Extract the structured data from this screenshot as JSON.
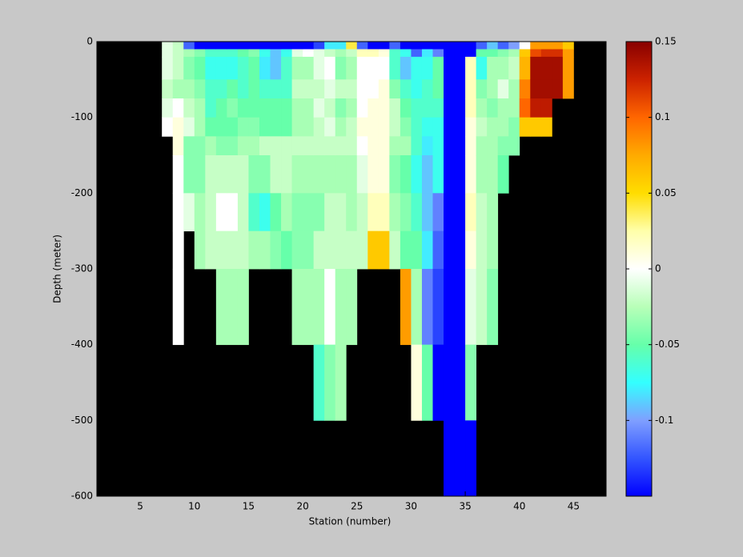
{
  "chart_data": {
    "type": "heatmap",
    "xlabel": "Station (number)",
    "ylabel": "Depth (meter)",
    "xlim": [
      1,
      48
    ],
    "ylim": [
      -600,
      0
    ],
    "xticks": [
      5,
      10,
      15,
      20,
      25,
      30,
      35,
      40,
      45
    ],
    "yticks": [
      0,
      -100,
      -200,
      -300,
      -400,
      -500,
      -600
    ],
    "clim": [
      -0.15,
      0.15
    ],
    "cticks": [
      -0.1,
      -0.05,
      0,
      0.05,
      0.1,
      0.15
    ],
    "background": "#000000",
    "colormap": [
      "#0000ff",
      "#3355ff",
      "#7f9fff",
      "#33ffff",
      "#66ffaa",
      "#b8ffb8",
      "#ffffff",
      "#ffffaa",
      "#ffdd00",
      "#ffaa00",
      "#ff6600",
      "#cc2200",
      "#880000"
    ],
    "x": [
      7,
      8,
      9,
      10,
      11,
      12,
      13,
      14,
      15,
      16,
      17,
      18,
      19,
      20,
      21,
      22,
      23,
      24,
      25,
      26,
      27,
      28,
      29,
      30,
      31,
      32,
      33,
      34,
      35,
      36,
      37,
      38,
      39,
      40,
      41,
      42,
      43,
      44,
      45
    ],
    "y": [
      0,
      -10,
      -20,
      -50,
      -75,
      -100,
      -125,
      -150,
      -200,
      -250,
      -300,
      -400,
      -500,
      -600
    ],
    "z": [
      [
        -0.01,
        -0.01,
        -0.01,
        -0.02,
        -0.01,
        0,
        null,
        null,
        null,
        null,
        null,
        null,
        null
      ],
      [
        -0.02,
        -0.02,
        -0.02,
        -0.03,
        0,
        0.01,
        0.01,
        0,
        0,
        0,
        0,
        null,
        null
      ],
      [
        -0.12,
        -0.03,
        -0.04,
        -0.03,
        -0.02,
        -0.01,
        -0.04,
        -0.04,
        -0.01,
        null,
        null,
        null,
        null
      ],
      [
        -0.15,
        -0.04,
        -0.05,
        -0.04,
        -0.03,
        -0.03,
        -0.04,
        -0.04,
        -0.03,
        -0.03,
        null,
        null,
        null
      ],
      [
        -0.15,
        -0.06,
        -0.07,
        -0.06,
        -0.06,
        -0.05,
        -0.03,
        -0.02,
        -0.02,
        -0.02,
        null,
        null,
        null
      ],
      [
        -0.15,
        -0.06,
        -0.07,
        -0.06,
        -0.05,
        -0.05,
        -0.04,
        -0.02,
        0,
        -0.02,
        -0.03,
        null,
        null
      ],
      [
        -0.15,
        -0.06,
        -0.07,
        -0.05,
        -0.04,
        -0.05,
        -0.04,
        -0.02,
        0,
        -0.02,
        -0.03,
        null,
        null
      ],
      [
        -0.15,
        -0.05,
        -0.06,
        -0.06,
        -0.05,
        -0.04,
        -0.03,
        -0.02,
        -0.02,
        -0.02,
        -0.03,
        null,
        null
      ],
      [
        -0.15,
        -0.04,
        -0.05,
        -0.05,
        -0.05,
        -0.04,
        -0.03,
        -0.04,
        -0.06,
        -0.03,
        null,
        null,
        null
      ],
      [
        -0.15,
        -0.07,
        -0.08,
        -0.06,
        -0.05,
        -0.05,
        -0.02,
        -0.04,
        -0.07,
        -0.03,
        null,
        null,
        null
      ],
      [
        -0.15,
        -0.09,
        -0.09,
        -0.06,
        -0.05,
        -0.05,
        -0.02,
        -0.02,
        -0.05,
        -0.04,
        null,
        null,
        null
      ],
      [
        -0.15,
        -0.07,
        -0.06,
        -0.06,
        -0.05,
        -0.05,
        -0.02,
        -0.02,
        -0.03,
        -0.05,
        null,
        null,
        null
      ],
      [
        -0.15,
        -0.01,
        -0.03,
        -0.02,
        -0.03,
        -0.03,
        -0.02,
        -0.03,
        -0.04,
        -0.04,
        -0.03,
        null,
        null
      ],
      [
        -0.15,
        0,
        -0.03,
        -0.02,
        -0.03,
        -0.03,
        -0.02,
        -0.03,
        -0.04,
        -0.04,
        -0.03,
        null,
        null
      ],
      [
        -0.13,
        -0.01,
        -0.01,
        -0.02,
        -0.01,
        -0.02,
        -0.02,
        -0.03,
        -0.04,
        -0.02,
        -0.03,
        -0.06,
        null
      ],
      [
        -0.08,
        -0.02,
        0,
        -0.01,
        -0.02,
        -0.01,
        -0.02,
        -0.03,
        -0.02,
        -0.02,
        0,
        -0.04,
        null
      ],
      [
        -0.08,
        -0.03,
        -0.04,
        -0.02,
        -0.04,
        -0.03,
        -0.02,
        -0.03,
        -0.02,
        -0.02,
        -0.03,
        -0.03,
        null
      ],
      [
        0.04,
        -0.02,
        -0.03,
        -0.02,
        -0.03,
        -0.02,
        -0.02,
        -0.03,
        -0.03,
        -0.02,
        -0.03,
        null,
        null
      ],
      [
        -0.12,
        0.02,
        0,
        0,
        0,
        0.01,
        0,
        -0.01,
        -0.02,
        -0.02,
        null,
        null,
        null
      ],
      [
        -0.15,
        0.02,
        0,
        0,
        0.01,
        0.01,
        0.01,
        0.01,
        0.02,
        0.06,
        null,
        null,
        null
      ],
      [
        -0.15,
        0.01,
        0,
        0.01,
        0.01,
        0.01,
        0.01,
        0.01,
        0.02,
        0.06,
        null,
        null,
        null
      ],
      [
        -0.12,
        -0.06,
        -0.06,
        -0.04,
        -0.02,
        -0.02,
        -0.03,
        -0.04,
        -0.03,
        -0.02,
        null,
        null,
        null
      ],
      [
        -0.15,
        -0.07,
        -0.09,
        -0.06,
        -0.05,
        -0.04,
        -0.03,
        -0.05,
        -0.04,
        -0.05,
        0.08,
        null,
        null
      ],
      [
        -0.15,
        -0.12,
        -0.07,
        -0.07,
        -0.06,
        -0.06,
        -0.06,
        -0.07,
        -0.06,
        -0.05,
        -0.03,
        0.01,
        null
      ],
      [
        -0.15,
        -0.08,
        -0.07,
        -0.06,
        -0.06,
        -0.07,
        -0.08,
        -0.09,
        -0.09,
        -0.08,
        -0.11,
        -0.05,
        null
      ],
      [
        -0.15,
        -0.11,
        -0.05,
        -0.05,
        -0.06,
        -0.07,
        -0.07,
        -0.07,
        -0.11,
        -0.12,
        -0.13,
        -0.15,
        null
      ],
      [
        -0.15,
        -0.15,
        -0.15,
        -0.15,
        -0.15,
        -0.15,
        -0.15,
        -0.15,
        -0.15,
        -0.15,
        -0.15,
        -0.15,
        -0.15
      ],
      [
        -0.15,
        -0.15,
        -0.15,
        -0.15,
        -0.15,
        -0.15,
        -0.15,
        -0.15,
        -0.15,
        -0.15,
        -0.15,
        -0.15,
        -0.15
      ],
      [
        -0.15,
        -0.15,
        0.02,
        0.02,
        0.02,
        0.01,
        0.01,
        0.01,
        0.02,
        0.01,
        -0.01,
        -0.04,
        -0.15
      ],
      [
        -0.12,
        -0.05,
        -0.07,
        -0.04,
        -0.03,
        -0.02,
        -0.03,
        -0.03,
        -0.02,
        -0.02,
        -0.02,
        null,
        null
      ],
      [
        -0.09,
        -0.05,
        -0.03,
        -0.03,
        -0.04,
        -0.03,
        -0.03,
        -0.03,
        -0.03,
        -0.03,
        -0.04,
        null,
        null
      ],
      [
        -0.12,
        -0.04,
        -0.03,
        -0.01,
        -0.03,
        -0.03,
        -0.04,
        -0.05,
        null,
        null,
        null,
        null,
        null
      ],
      [
        -0.1,
        -0.03,
        -0.02,
        -0.03,
        -0.03,
        -0.04,
        -0.04,
        null,
        null,
        null,
        null,
        null,
        null
      ],
      [
        0,
        0.06,
        0.07,
        0.09,
        0.1,
        0.06,
        null,
        null,
        null,
        null,
        null,
        null,
        null
      ],
      [
        0.08,
        0.11,
        0.14,
        0.14,
        0.13,
        0.06,
        null,
        null,
        null,
        null,
        null,
        null,
        null
      ],
      [
        0.08,
        0.12,
        0.14,
        0.14,
        0.13,
        0.06,
        null,
        null,
        null,
        null,
        null,
        null,
        null
      ],
      [
        0.08,
        0.12,
        0.14,
        0.14,
        null,
        null,
        null,
        null,
        null,
        null,
        null,
        null,
        null
      ],
      [
        0.06,
        0.08,
        0.08,
        0.08,
        null,
        null,
        null,
        null,
        null,
        null,
        null,
        null,
        null
      ]
    ]
  }
}
